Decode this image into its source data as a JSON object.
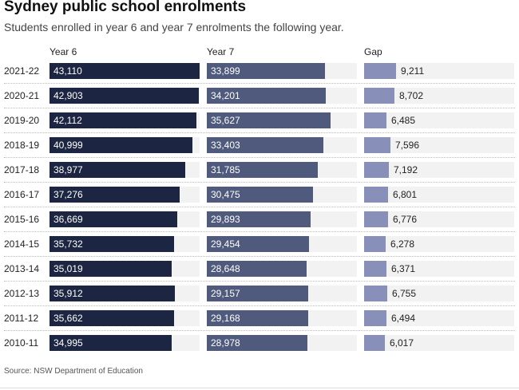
{
  "chart_data": {
    "type": "bar",
    "title": "Sydney public school enrolments",
    "subtitle": "Students enrolled in year 6 and year 7 enrolments the following year.",
    "categories": [
      "2021-22",
      "2020-21",
      "2019-20",
      "2018-19",
      "2017-18",
      "2016-17",
      "2015-16",
      "2014-15",
      "2013-14",
      "2012-13",
      "2011-12",
      "2010-11"
    ],
    "series": [
      {
        "name": "Year 6",
        "color": "#1c2541",
        "values": [
          43110,
          42903,
          42112,
          40999,
          38977,
          37276,
          36669,
          35732,
          35019,
          35912,
          35662,
          34995
        ],
        "labels": [
          "43,110",
          "42,903",
          "42,112",
          "40,999",
          "38,977",
          "37,276",
          "36,669",
          "35,732",
          "35,019",
          "35,912",
          "35,662",
          "34,995"
        ]
      },
      {
        "name": "Year 7",
        "color": "#4f5a7c",
        "values": [
          33899,
          34201,
          35627,
          33403,
          31785,
          30475,
          29893,
          29454,
          28648,
          29157,
          29168,
          28978
        ],
        "labels": [
          "33,899",
          "34,201",
          "35,627",
          "33,403",
          "31,785",
          "30,475",
          "29,893",
          "29,454",
          "28,648",
          "29,157",
          "29,168",
          "28,978"
        ]
      },
      {
        "name": "Gap",
        "color": "#8890b9",
        "values": [
          9211,
          8702,
          6485,
          7596,
          7192,
          6801,
          6776,
          6278,
          6371,
          6755,
          6494,
          6017
        ],
        "labels": [
          "9,211",
          "8,702",
          "6,485",
          "7,596",
          "7,192",
          "6,801",
          "6,776",
          "6,278",
          "6,371",
          "6,755",
          "6,494",
          "6,017"
        ]
      }
    ],
    "xlim": [
      0,
      43110
    ]
  },
  "source": "Source: NSW Department of Education"
}
